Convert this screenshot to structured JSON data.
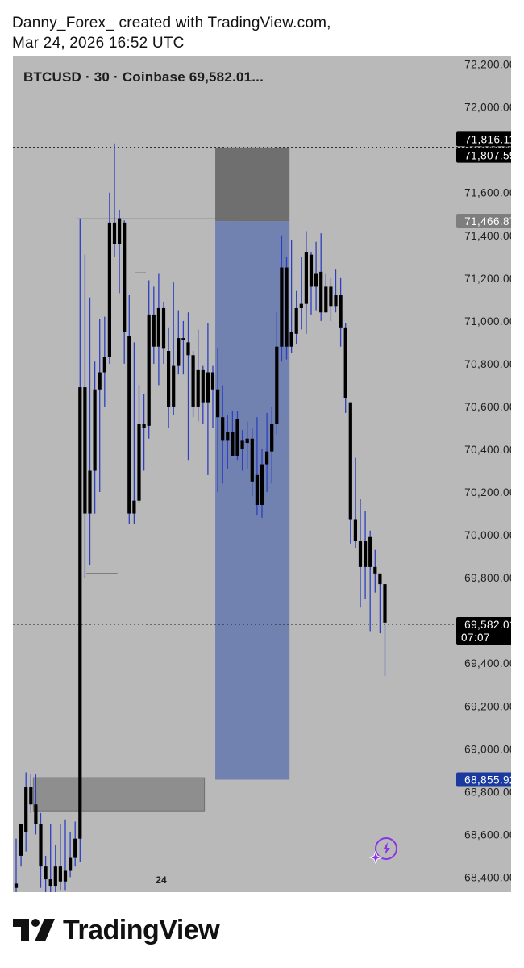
{
  "header": {
    "line1": "Danny_Forex_ created with TradingView.com,",
    "line2": "Mar 24, 2026 16:52 UTC"
  },
  "symbol_info": "BTCUSD · 30 · Coinbase  69,582.01...",
  "footer": {
    "brand": "TradingView",
    "logo_icon": "tradingview-logo-icon"
  },
  "assistant_icon": "sparkle-bolt-icon",
  "colors": {
    "background": "#b9b9b9",
    "wick": "#2d3fc0",
    "candle_body": "#000000",
    "zone_gray": "#808080",
    "zone_dark": "#6f6f6f",
    "zone_blue": "#7182b0",
    "current_price_bg": "#000000",
    "blue_label_bg": "#1a3aa0",
    "gray_label_bg": "#7e7e7e"
  },
  "chart_data": {
    "type": "candlestick",
    "symbol": "BTCUSD",
    "interval": "30",
    "exchange": "Coinbase",
    "y_axis": {
      "ticks": [
        "72,200.00",
        "72,000.00",
        "71,800.00",
        "71,600.00",
        "71,400.00",
        "71,200.00",
        "71,000.00",
        "70,800.00",
        "70,600.00",
        "70,400.00",
        "70,200.00",
        "70,000.00",
        "69,800.00",
        "69,400.00",
        "69,200.00",
        "69,000.00",
        "68,800.00",
        "68,600.00",
        "68,400.00"
      ],
      "ylim": [
        68330,
        72240
      ]
    },
    "x_axis": {
      "ticks": [
        {
          "index": 29.5,
          "label": "24"
        }
      ]
    },
    "price_labels": [
      {
        "value": 71816.11,
        "text": "71,816.11",
        "style": "black"
      },
      {
        "value": 71807.59,
        "text": "71,807.59",
        "style": "black"
      },
      {
        "value": 71466.87,
        "text": "71,466.87",
        "style": "gray"
      },
      {
        "value": 69582.01,
        "text": "69,582.01",
        "sub": "07:07",
        "style": "black"
      },
      {
        "value": 68855.92,
        "text": "68,855.92",
        "style": "blue"
      }
    ],
    "dotted_lines": [
      71811,
      69582.01
    ],
    "zones": [
      {
        "kind": "dark",
        "x0": 40.5,
        "x1": 55.6,
        "top": 71811,
        "bottom": 71466.87
      },
      {
        "kind": "blue",
        "x0": 40.5,
        "x1": 55.6,
        "top": 71466.87,
        "bottom": 68855.92
      },
      {
        "kind": "gray",
        "x0": 3.5,
        "x1": 38.3,
        "top": 68865,
        "bottom": 68710
      }
    ],
    "h_lines": [
      {
        "x0": 12.3,
        "x1": 45.4,
        "y": 71477
      },
      {
        "x0": 14.3,
        "x1": 20.6,
        "y": 69820
      },
      {
        "x0": 24.1,
        "x1": 26.4,
        "y": 71225
      }
    ],
    "candles": [
      [
        68370,
        68350,
        68580,
        68300
      ],
      [
        68500,
        68650,
        68650,
        68450
      ],
      [
        68610,
        68820,
        68890,
        68520
      ],
      [
        68820,
        68740,
        68880,
        68700
      ],
      [
        68740,
        68650,
        68880,
        68600
      ],
      [
        68650,
        68450,
        68700,
        68350
      ],
      [
        68450,
        68390,
        68500,
        68300
      ],
      [
        68390,
        68360,
        68650,
        68310
      ],
      [
        68360,
        68450,
        68550,
        68320
      ],
      [
        68450,
        68380,
        68650,
        68340
      ],
      [
        68380,
        68430,
        68670,
        68340
      ],
      [
        68430,
        68490,
        68610,
        68400
      ],
      [
        68490,
        68580,
        68660,
        68450
      ],
      [
        68580,
        70690,
        71480,
        68470
      ],
      [
        70690,
        70100,
        71310,
        69800
      ],
      [
        70100,
        70300,
        71110,
        69860
      ],
      [
        70300,
        70680,
        70810,
        70100
      ],
      [
        70680,
        70760,
        71010,
        70200
      ],
      [
        70760,
        70830,
        71020,
        70600
      ],
      [
        70830,
        71460,
        71600,
        70800
      ],
      [
        71460,
        71360,
        71830,
        71300
      ],
      [
        71360,
        71480,
        71520,
        71130
      ],
      [
        71460,
        70950,
        71470,
        70800
      ],
      [
        70930,
        70100,
        71120,
        70050
      ],
      [
        70100,
        70160,
        70900,
        70050
      ],
      [
        70160,
        70520,
        70700,
        70150
      ],
      [
        70520,
        70500,
        70660,
        70300
      ],
      [
        70510,
        71030,
        71190,
        70450
      ],
      [
        71030,
        70880,
        71160,
        70800
      ],
      [
        70880,
        71060,
        71220,
        70700
      ],
      [
        71060,
        70870,
        71090,
        70800
      ],
      [
        70860,
        70600,
        70970,
        70500
      ],
      [
        70600,
        70790,
        71180,
        70560
      ],
      [
        70790,
        70920,
        71050,
        70750
      ],
      [
        70920,
        70910,
        71000,
        70750
      ],
      [
        70900,
        70840,
        71040,
        70350
      ],
      [
        70840,
        70600,
        70860,
        70550
      ],
      [
        70600,
        70770,
        70960,
        70530
      ],
      [
        70770,
        70620,
        70790,
        70520
      ],
      [
        70620,
        70760,
        70990,
        70280
      ],
      [
        70760,
        70680,
        70790,
        70500
      ],
      [
        70680,
        70550,
        70870,
        70200
      ],
      [
        70550,
        70440,
        70700,
        70240
      ],
      [
        70440,
        70480,
        70560,
        70310
      ],
      [
        70480,
        70370,
        70580,
        70400
      ],
      [
        70370,
        70540,
        70580,
        70350
      ],
      [
        70400,
        70440,
        70490,
        70300
      ],
      [
        70430,
        70450,
        70530,
        70310
      ],
      [
        70450,
        70250,
        70500,
        70180
      ],
      [
        70280,
        70140,
        70550,
        70090
      ],
      [
        70140,
        70330,
        70400,
        70080
      ],
      [
        70330,
        70390,
        70570,
        70200
      ],
      [
        70390,
        70520,
        70600,
        70240
      ],
      [
        70520,
        70880,
        71040,
        70470
      ],
      [
        70880,
        71250,
        71400,
        70810
      ],
      [
        71250,
        70880,
        71300,
        70820
      ],
      [
        70880,
        70950,
        71380,
        70850
      ],
      [
        70940,
        71060,
        71140,
        70890
      ],
      [
        71060,
        71080,
        71300,
        70960
      ],
      [
        71080,
        71320,
        71420,
        70940
      ],
      [
        71310,
        71160,
        71320,
        71030
      ],
      [
        71160,
        71220,
        71370,
        71050
      ],
      [
        71230,
        71040,
        71410,
        71000
      ],
      [
        71040,
        71160,
        71220,
        71070
      ],
      [
        71160,
        71070,
        71200,
        71000
      ],
      [
        71070,
        71120,
        71240,
        71040
      ],
      [
        71120,
        70970,
        71200,
        70880
      ],
      [
        70970,
        70640,
        70990,
        70570
      ],
      [
        70620,
        70070,
        70610,
        69960
      ],
      [
        70070,
        69970,
        70360,
        69940
      ],
      [
        69970,
        69850,
        70170,
        69660
      ],
      [
        69850,
        69970,
        70110,
        69700
      ],
      [
        69990,
        69850,
        70020,
        69550
      ],
      [
        69850,
        69820,
        69930,
        69730
      ],
      [
        69820,
        69770,
        69800,
        69540
      ],
      [
        69770,
        69590,
        69770,
        69340
      ]
    ]
  }
}
